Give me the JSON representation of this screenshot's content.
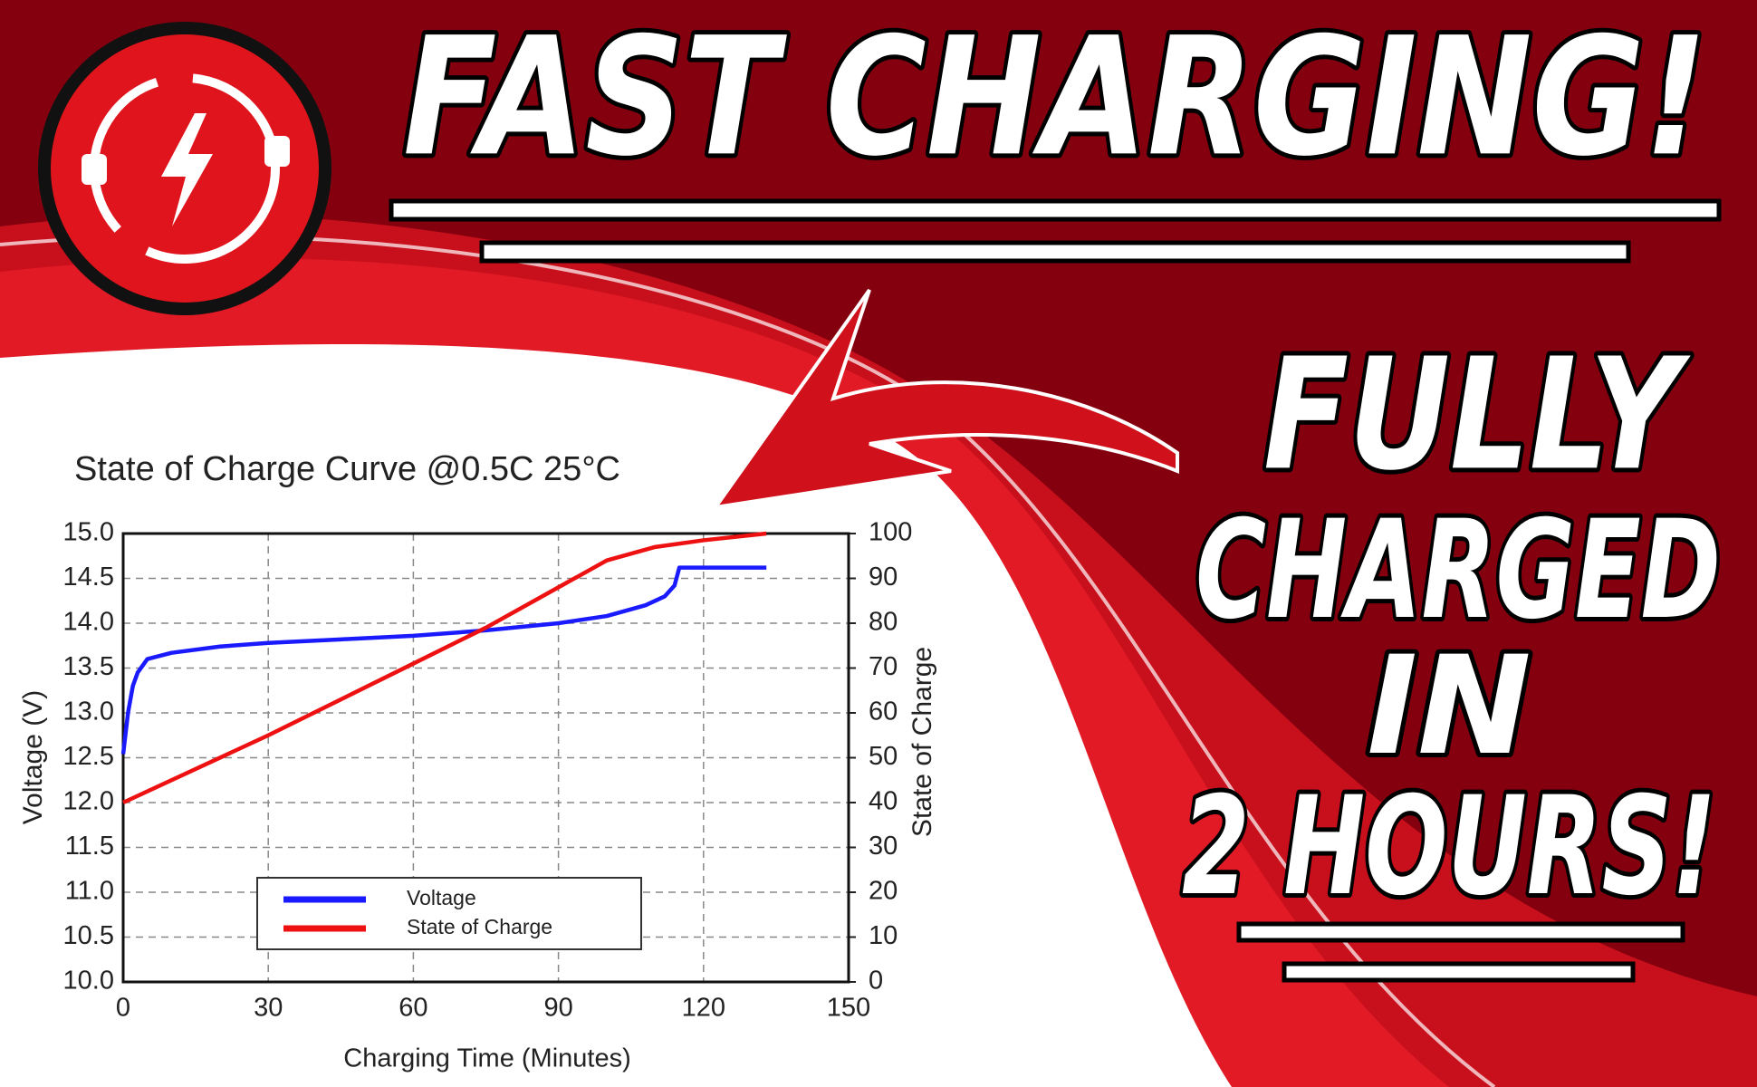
{
  "banner": {
    "headline": "FAST CHARGING!",
    "lines": [
      "FULLY",
      "CHARGED",
      "IN",
      "2 HOURS!"
    ]
  },
  "chart_data": {
    "type": "line",
    "title": "State of Charge Curve @0.5C 25°C",
    "x_label": "Charging Time (Minutes)",
    "y_label": "Voltage (V)",
    "y2_label": "State of Charge",
    "xlim": [
      0,
      150
    ],
    "xticks": [
      0,
      30,
      60,
      90,
      120,
      150
    ],
    "ylim": [
      10,
      15
    ],
    "yticks": [
      {
        "value": 10,
        "label": "10.0"
      },
      10.5,
      {
        "value": 11,
        "label": "11.0"
      },
      11.5,
      {
        "value": 12,
        "label": "12.0"
      },
      12.5,
      {
        "value": 13,
        "label": "13.0"
      },
      13.5,
      {
        "value": 14,
        "label": "14.0"
      },
      14.5,
      {
        "value": 15,
        "label": "15.0"
      }
    ],
    "y2lim": [
      0,
      100
    ],
    "y2ticks": [
      0,
      10,
      20,
      30,
      40,
      50,
      60,
      70,
      80,
      90,
      100
    ],
    "grid": true,
    "legend": "lower center",
    "series": [
      {
        "name": "Voltage",
        "color": "#1a1aff",
        "x": [
          0,
          1,
          2,
          3,
          5,
          10,
          20,
          30,
          45,
          60,
          75,
          90,
          100,
          108,
          112,
          114,
          115,
          120,
          133
        ],
        "values": [
          12.54,
          13.0,
          13.3,
          13.45,
          13.6,
          13.67,
          13.74,
          13.78,
          13.82,
          13.86,
          13.92,
          14.0,
          14.08,
          14.2,
          14.3,
          14.42,
          14.62,
          14.62,
          14.62
        ]
      },
      {
        "name": "State of Charge",
        "color": "#ee1111",
        "axis": "y2",
        "x": [
          0,
          30,
          60,
          75,
          90,
          100,
          110,
          120,
          133
        ],
        "values": [
          40,
          55,
          71,
          79,
          88,
          94,
          97,
          98.5,
          100
        ]
      }
    ]
  }
}
